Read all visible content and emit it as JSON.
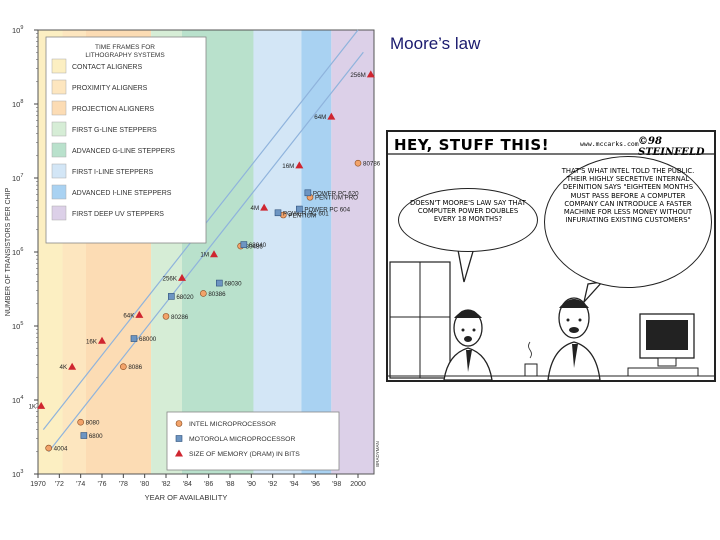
{
  "slide_title": "Moore’s law",
  "chart_data": {
    "type": "scatter",
    "ylim": [
      3,
      9
    ],
    "xlim": [
      1970,
      2001.5
    ],
    "ylabel": "NUMBER OF TRANSISTORS PER CHIP",
    "xlabel": "YEAR OF AVAILABILITY",
    "credit": "BRADYMAN",
    "y_ticks": [
      {
        "label": "10",
        "exp": "3",
        "v": 3
      },
      {
        "label": "10",
        "exp": "4",
        "v": 4
      },
      {
        "label": "10",
        "exp": "5",
        "v": 5
      },
      {
        "label": "10",
        "exp": "6",
        "v": 6
      },
      {
        "label": "10",
        "exp": "7",
        "v": 7
      },
      {
        "label": "10",
        "exp": "8",
        "v": 8
      },
      {
        "label": "10",
        "exp": "9",
        "v": 9
      }
    ],
    "x_ticks": [
      {
        "label": "1970",
        "v": 1970
      },
      {
        "label": "'72",
        "v": 1972
      },
      {
        "label": "'74",
        "v": 1974
      },
      {
        "label": "'76",
        "v": 1976
      },
      {
        "label": "'78",
        "v": 1978
      },
      {
        "label": "'80",
        "v": 1980
      },
      {
        "label": "'82",
        "v": 1982
      },
      {
        "label": "'84",
        "v": 1984
      },
      {
        "label": "'86",
        "v": 1986
      },
      {
        "label": "'88",
        "v": 1988
      },
      {
        "label": "'90",
        "v": 1990
      },
      {
        "label": "'92",
        "v": 1992
      },
      {
        "label": "'94",
        "v": 1994
      },
      {
        "label": "'96",
        "v": 1996
      },
      {
        "label": "'98",
        "v": 1998
      },
      {
        "label": "2000",
        "v": 2000
      }
    ],
    "bands": [
      {
        "label": "CONTACT ALIGNERS",
        "x0": 1970,
        "x1": 1972.3,
        "color": "#fcefc2"
      },
      {
        "label": "PROXIMITY ALIGNERS",
        "x0": 1972.3,
        "x1": 1974.5,
        "color": "#fde6bf"
      },
      {
        "label": "PROJECTION ALIGNERS",
        "x0": 1974.5,
        "x1": 1980.6,
        "color": "#fcdcb4"
      },
      {
        "label": "FIRST G-LINE STEPPERS",
        "x0": 1980.6,
        "x1": 1983.5,
        "color": "#d6edd6"
      },
      {
        "label": "ADVANCED G-LINE STEPPERS",
        "x0": 1983.5,
        "x1": 1990.2,
        "color": "#b9e1cc"
      },
      {
        "label": "FIRST I-LINE STEPPERS",
        "x0": 1990.2,
        "x1": 1994.7,
        "color": "#d3e6f6"
      },
      {
        "label": "ADVANCED I-LINE STEPPERS",
        "x0": 1994.7,
        "x1": 1997.5,
        "color": "#a9d2f2"
      },
      {
        "label": "FIRST DEEP UV STEPPERS",
        "x0": 1997.5,
        "x1": 2001.5,
        "color": "#dcd0e8"
      }
    ],
    "band_legend_title": [
      "TIME FRAMES FOR",
      "LITHOGRAPHY SYSTEMS"
    ],
    "marker_legend": [
      {
        "label": "INTEL MICROPROCESSOR",
        "kind": "intel"
      },
      {
        "label": "MOTOROLA MICROPROCESSOR",
        "kind": "motorola"
      },
      {
        "label": "SIZE OF MEMORY (DRAM) IN BITS",
        "kind": "dram"
      }
    ],
    "colors": {
      "intel": "#f2a36a",
      "motorola": "#6d95c2",
      "dram": "#cf2630",
      "trend": "#8fb3dc"
    },
    "trend_lines": [
      {
        "x": [
          1971,
          2000.5
        ],
        "y": [
          3.3,
          8.7
        ]
      },
      {
        "x": [
          1970.5,
          2000
        ],
        "y": [
          3.6,
          9.0
        ]
      }
    ],
    "series": [
      {
        "name": "INTEL MICROPROCESSOR",
        "kind": "intel",
        "points": [
          {
            "x": 1971,
            "y": 3.35,
            "label": "4004"
          },
          {
            "x": 1974,
            "y": 3.7,
            "label": "8080"
          },
          {
            "x": 1978,
            "y": 4.45,
            "label": "8086"
          },
          {
            "x": 1982,
            "y": 5.13,
            "label": "80286"
          },
          {
            "x": 1985.5,
            "y": 5.44,
            "label": "80386"
          },
          {
            "x": 1989,
            "y": 6.08,
            "label": "80486"
          },
          {
            "x": 1993,
            "y": 6.5,
            "label": "PENTIUM"
          },
          {
            "x": 1995.5,
            "y": 6.74,
            "label": "PENTIUM PRO"
          },
          {
            "x": 2000,
            "y": 7.2,
            "label": "80786"
          }
        ]
      },
      {
        "name": "MOTOROLA MICROPROCESSOR",
        "kind": "motorola",
        "points": [
          {
            "x": 1974.3,
            "y": 3.52,
            "label": "6800"
          },
          {
            "x": 1979,
            "y": 4.83,
            "label": "68000"
          },
          {
            "x": 1982.5,
            "y": 5.4,
            "label": "68020"
          },
          {
            "x": 1987,
            "y": 5.58,
            "label": "68030"
          },
          {
            "x": 1989.3,
            "y": 6.1,
            "label": "68040"
          },
          {
            "x": 1992.5,
            "y": 6.53,
            "label": "POWER PC 601"
          },
          {
            "x": 1994.5,
            "y": 6.58,
            "label": "POWER PC 604"
          },
          {
            "x": 1995.3,
            "y": 6.8,
            "label": "POWER PC 620"
          }
        ]
      },
      {
        "name": "SIZE OF MEMORY (DRAM) IN BITS",
        "kind": "dram",
        "points": [
          {
            "x": 1970.3,
            "y": 3.92,
            "label": "1K"
          },
          {
            "x": 1973.2,
            "y": 4.45,
            "label": "4K"
          },
          {
            "x": 1976,
            "y": 4.8,
            "label": "16K"
          },
          {
            "x": 1979.5,
            "y": 5.15,
            "label": "64K"
          },
          {
            "x": 1983.5,
            "y": 5.65,
            "label": "256K"
          },
          {
            "x": 1986.5,
            "y": 5.97,
            "label": "1M"
          },
          {
            "x": 1991.2,
            "y": 6.6,
            "label": "4M"
          },
          {
            "x": 1994.5,
            "y": 7.17,
            "label": "16M"
          },
          {
            "x": 1997.5,
            "y": 7.83,
            "label": "64M"
          },
          {
            "x": 2001.2,
            "y": 8.4,
            "label": "256M"
          }
        ]
      }
    ]
  },
  "comic": {
    "headline": "HEY, STUFF THIS!",
    "url": "www.mccarks.com",
    "signature": "©98 STEINFELD",
    "speech_left": "DOESN'T MOORE'S LAW SAY THAT COMPUTER POWER DOUBLES EVERY 18 MONTHS?",
    "speech_right": "THAT'S WHAT INTEL TOLD THE PUBLIC. THEIR HIGHLY SECRETIVE INTERNAL DEFINITION SAYS \"EIGHTEEN MONTHS MUST PASS BEFORE A COMPUTER COMPANY CAN INTRODUCE A FASTER MACHINE FOR LESS MONEY WITHOUT INFURIATING EXISTING CUSTOMERS\""
  }
}
